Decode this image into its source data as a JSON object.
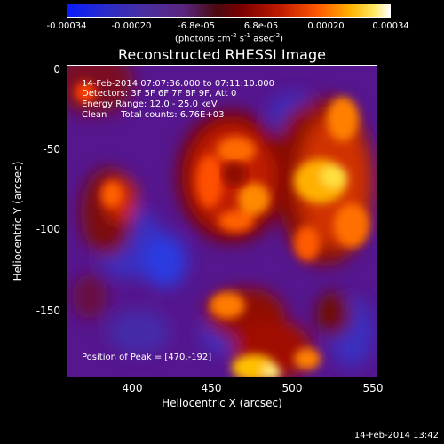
{
  "colorbar": {
    "ticks": [
      "-0.00034",
      "-0.00020",
      "-6.8e-05",
      "6.8e-05",
      "0.00020",
      "0.00034"
    ],
    "unit_prefix": "(photons cm",
    "unit_exp1": "-2",
    "unit_mid1": " s",
    "unit_exp2": "-1",
    "unit_mid2": " asec",
    "unit_exp3": "-2",
    "unit_suffix": ")"
  },
  "title": "Reconstructed RHESSI Image",
  "info": {
    "line1": "14-Feb-2014 07:07:36.000 to 07:11:10.000",
    "line2": "Detectors: 3F 5F 6F 7F 8F 9F, Att 0",
    "line3": "Energy Range: 12.0 - 25.0 keV",
    "line4": "Clean     Total counts: 6.76E+03",
    "peak": "Position of Peak = [470,-192]"
  },
  "axes": {
    "ylabel": "Heliocentric Y (arcsec)",
    "xlabel": "Heliocentric X (arcsec)",
    "yticks": [
      "0",
      "-50",
      "-100",
      "-150"
    ],
    "xticks": [
      "400",
      "450",
      "500",
      "550"
    ]
  },
  "timestamp": "14-Feb-2014 13:42"
}
